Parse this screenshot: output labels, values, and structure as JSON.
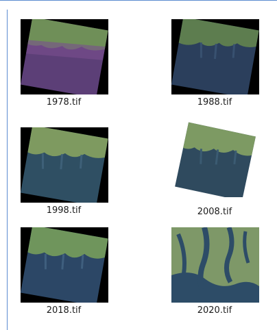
{
  "files": [
    {
      "name": "1978.tif"
    },
    {
      "name": "1988.tif"
    },
    {
      "name": "1998.tif"
    },
    {
      "name": "2008.tif"
    },
    {
      "name": "2018.tif"
    },
    {
      "name": "2020.tif"
    }
  ],
  "colors": {
    "pane_border": "#5b8bd0",
    "background": "#ffffff",
    "thumb_background_dark": "#000000",
    "land_green": "#7fa36a",
    "water_blue": "#2c4a6a",
    "purple_tint": "#6a4a88"
  }
}
